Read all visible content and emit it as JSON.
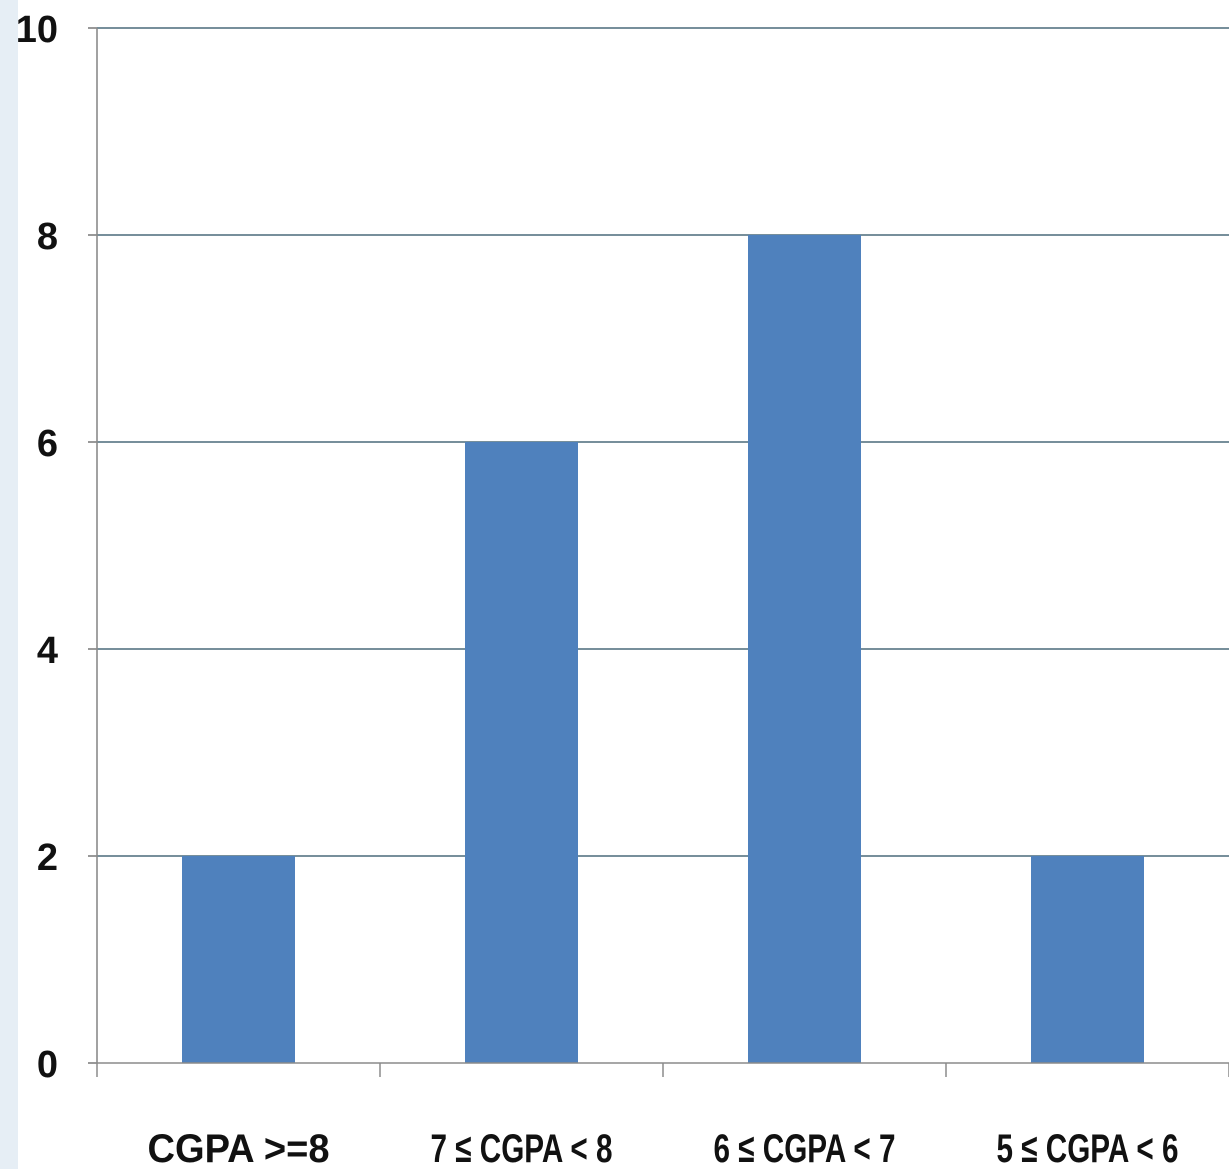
{
  "chart_data": {
    "type": "bar",
    "title": "",
    "xlabel": "",
    "ylabel": "",
    "categories": [
      "CGPA >=8",
      "7 ≤ CGPA < 8",
      "6 ≤ CGPA < 7",
      "5 ≤ CGPA < 6"
    ],
    "values": [
      2,
      6,
      8,
      2
    ],
    "ylim": [
      0,
      10
    ],
    "yticks": [
      0,
      2,
      4,
      6,
      8,
      10
    ],
    "ytick_labels": [
      "0",
      "2",
      "4",
      "6",
      "8",
      "10"
    ],
    "grid": true,
    "legend": "none",
    "bar_color": "#4f81bd",
    "grid_color": "#4a6a7a",
    "background_strip_color": "#e6eef5"
  }
}
